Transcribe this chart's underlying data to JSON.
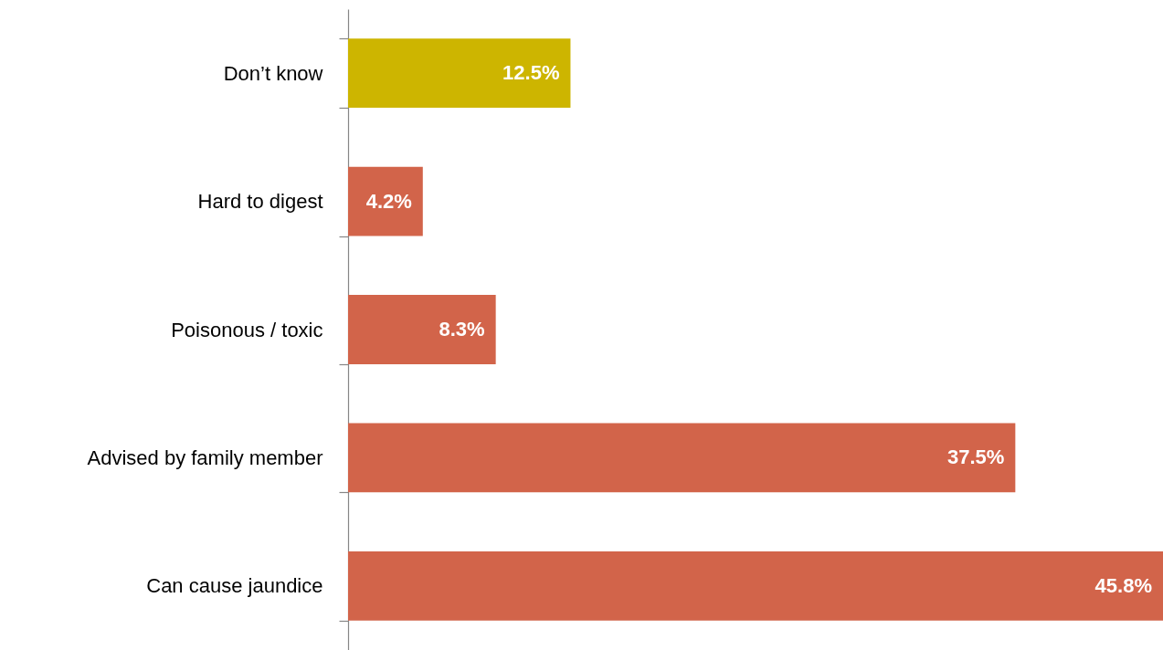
{
  "chart_data": {
    "type": "bar",
    "orientation": "horizontal",
    "categories": [
      "Don’t know",
      "Hard to digest",
      "Poisonous / toxic",
      "Advised by family member",
      "Can cause jaundice"
    ],
    "values": [
      12.5,
      4.2,
      8.3,
      37.5,
      45.8
    ],
    "colors": [
      "#cdb500",
      "#d2644a",
      "#d2644a",
      "#d2644a",
      "#d2644a"
    ],
    "value_labels": [
      "12.5%",
      "4.2%",
      "8.3%",
      "37.5%",
      "45.8%"
    ],
    "tick_labels": "y"
  }
}
